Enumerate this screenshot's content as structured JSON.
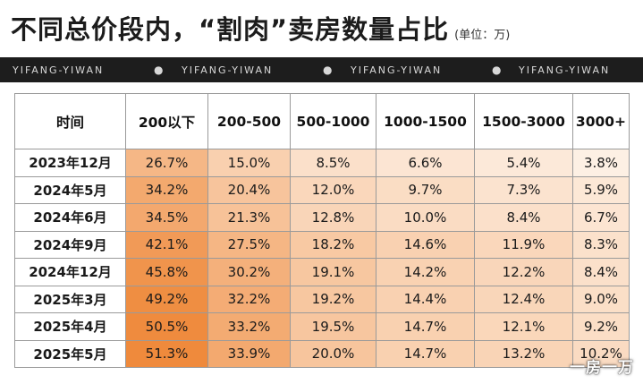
{
  "header": {
    "title": "不同总价段内，“割肉”卖房数量占比",
    "unit": "(单位：万)"
  },
  "banner": {
    "brand": "YIFANG-YIWAN",
    "separator": "●"
  },
  "table": {
    "columns": [
      "时间",
      "200以下",
      "200-500",
      "500-1000",
      "1000-1500",
      "1500-3000",
      "3000+"
    ],
    "rows": [
      {
        "label": "2023年12月",
        "values": [
          "26.7%",
          "15.0%",
          "8.5%",
          "6.6%",
          "5.4%",
          "3.8%"
        ]
      },
      {
        "label": "2024年5月",
        "values": [
          "34.2%",
          "20.4%",
          "12.0%",
          "9.7%",
          "7.3%",
          "5.9%"
        ]
      },
      {
        "label": "2024年6月",
        "values": [
          "34.5%",
          "21.3%",
          "12.8%",
          "10.0%",
          "8.4%",
          "6.7%"
        ]
      },
      {
        "label": "2024年9月",
        "values": [
          "42.1%",
          "27.5%",
          "18.2%",
          "14.6%",
          "11.9%",
          "8.3%"
        ]
      },
      {
        "label": "2024年12月",
        "values": [
          "45.8%",
          "30.2%",
          "19.1%",
          "14.2%",
          "12.2%",
          "8.4%"
        ]
      },
      {
        "label": "2025年3月",
        "values": [
          "49.2%",
          "32.2%",
          "19.2%",
          "14.4%",
          "12.4%",
          "9.0%"
        ]
      },
      {
        "label": "2025年4月",
        "values": [
          "50.5%",
          "33.2%",
          "19.5%",
          "14.7%",
          "12.1%",
          "9.2%"
        ]
      },
      {
        "label": "2025年5月",
        "values": [
          "51.3%",
          "33.9%",
          "20.0%",
          "14.7%",
          "13.2%",
          "10.2%"
        ]
      }
    ],
    "colors": {
      "high": "#ef8a3c",
      "low": "#fdf0e4"
    }
  },
  "watermark": {
    "text": "一房一万"
  }
}
